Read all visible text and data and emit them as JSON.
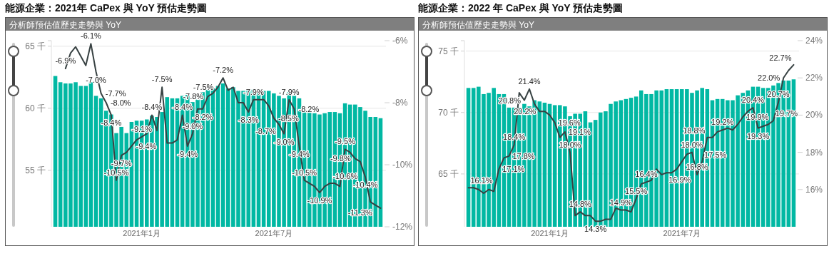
{
  "chart_data": [
    {
      "type": "bar",
      "title": "能源企業：2021年 CaPex 與 YoY 預估走勢圖",
      "subtitle": "分析師預估值歷史走勢與 YoY",
      "grid": "y",
      "categories": [
        null,
        null,
        null,
        null,
        null,
        null,
        null,
        null,
        null,
        null,
        null,
        null,
        null,
        null,
        null,
        null,
        null,
        "2021年1月",
        null,
        null,
        null,
        null,
        null,
        null,
        null,
        null,
        null,
        null,
        null,
        null,
        null,
        null,
        null,
        null,
        null,
        null,
        null,
        null,
        null,
        null,
        null,
        null,
        null,
        "2021年7月",
        null,
        null,
        null,
        null,
        null,
        null,
        null,
        null,
        null,
        null,
        null,
        null,
        null,
        null,
        null,
        null,
        null,
        null,
        null,
        null,
        null
      ],
      "ylim": [
        50.45,
        65.45
      ],
      "yticks": [
        {
          "value": 55,
          "label": "55 千"
        },
        {
          "value": 60,
          "label": "60 千"
        },
        {
          "value": 65,
          "label": "65 千"
        }
      ],
      "y2lim": [
        -12,
        -6
      ],
      "y2ticks": [
        {
          "value": -12,
          "label": "-12%"
        },
        {
          "value": -10,
          "label": "-10%"
        },
        {
          "value": -8,
          "label": "-8%"
        },
        {
          "value": -6,
          "label": "-6%"
        }
      ],
      "series": [
        {
          "type": "bar",
          "color": "#01b8a3",
          "values": [
            62.6,
            62.1,
            62.0,
            62.0,
            62.1,
            61.8,
            61.8,
            62.1,
            61.0,
            60.8,
            59.8,
            59.5,
            58.0,
            58.5,
            58.0,
            58.9,
            59.0,
            59.0,
            59.1,
            59.4,
            59.3,
            59.7,
            60.9,
            60.8,
            60.8,
            61.0,
            61.2,
            60.5,
            60.7,
            61.3,
            61.5,
            61.6,
            61.8,
            62.0,
            61.6,
            61.7,
            61.4,
            61.4,
            61.5,
            61.5,
            61.5,
            61.4,
            61.4,
            61.2,
            61.0,
            60.8,
            61.3,
            61.0,
            60.8,
            59.8,
            59.7,
            59.6,
            59.5,
            59.6,
            59.7,
            59.7,
            59.6,
            60.4,
            60.3,
            60.3,
            60.1,
            59.8,
            59.3,
            59.3,
            59.2
          ]
        },
        {
          "type": "line",
          "axis": "y2",
          "color": "#374142",
          "line_style": "solid",
          "values": [
            null,
            null,
            -6.9,
            -6.4,
            -6.2,
            -6.5,
            -6.8,
            -6.1,
            -7.0,
            -7.7,
            -8.0,
            -8.4,
            -10.5,
            -9.7,
            -9.6,
            -9.4,
            -9.2,
            -9.1,
            -9.0,
            -8.4,
            -8.9,
            -7.5,
            -9.3,
            -9.3,
            -9.2,
            -8.4,
            -9.4,
            -9.0,
            -8.2,
            -8.2,
            -7.8,
            -7.7,
            -7.5,
            -7.2,
            -7.6,
            -7.5,
            -8.0,
            -8.0,
            -8.3,
            -7.9,
            -7.9,
            -7.9,
            -8.1,
            -8.5,
            -8.7,
            -9.0,
            -7.9,
            -8.2,
            -9.4,
            -10.5,
            -10.6,
            -10.7,
            -10.9,
            -10.7,
            -10.6,
            -10.6,
            -10.7,
            -9.5,
            -9.6,
            -9.8,
            -9.9,
            -10.4,
            -11.2,
            -11.3,
            -11.4
          ],
          "value_labels": [
            null,
            null,
            "-6.9%",
            null,
            null,
            null,
            null,
            "-6.1%",
            "-7.0%",
            "-7.7%",
            "-8.0%",
            "-8.4%",
            "-10.5%",
            "-9.7%",
            null,
            "-9.4%",
            null,
            "-9.1%",
            null,
            "-8.4%",
            null,
            "-7.5%",
            null,
            null,
            null,
            "-8.4%",
            "-9.4%",
            "-9.0%",
            null,
            "-8.2%",
            "-7.8%",
            null,
            "-7.5%",
            "-7.2%",
            null,
            null,
            null,
            null,
            "-8.3%",
            "-7.9%",
            null,
            null,
            null,
            "-8.5%",
            "-8.7%",
            "-9.0%",
            "-7.9%",
            "-8.2%",
            "-9.4%",
            "-10.5%",
            null,
            null,
            "-10.9%",
            null,
            "-10.6%",
            null,
            null,
            "-9.5%",
            null,
            "-9.8%",
            null,
            "-10.4%",
            null,
            "-11.3%",
            null
          ]
        }
      ]
    },
    {
      "type": "bar",
      "title": "能源企業：2022 年 CaPex 與 YoY 預估走勢圖",
      "subtitle": "分析師預估值歷史走勢與 YoY",
      "grid": "y",
      "categories": [
        null,
        null,
        null,
        null,
        null,
        null,
        null,
        null,
        null,
        null,
        null,
        null,
        null,
        null,
        null,
        null,
        "2021年1月",
        null,
        null,
        null,
        null,
        null,
        null,
        null,
        null,
        null,
        null,
        null,
        null,
        null,
        null,
        null,
        null,
        null,
        null,
        null,
        null,
        null,
        null,
        null,
        null,
        null,
        "2021年7月",
        null,
        null,
        null,
        null,
        null,
        null,
        null,
        null,
        null,
        null,
        null,
        null,
        null,
        null,
        null,
        null,
        null,
        null,
        null,
        null,
        null,
        null
      ],
      "ylim": [
        60.7,
        75.85
      ],
      "yticks": [
        {
          "value": 65,
          "label": "65 千"
        },
        {
          "value": 70,
          "label": "70 千"
        },
        {
          "value": 75,
          "label": "75 千"
        }
      ],
      "y2lim": [
        14,
        24
      ],
      "y2ticks": [
        {
          "value": 16,
          "label": "16%"
        },
        {
          "value": 18,
          "label": "18%"
        },
        {
          "value": 20,
          "label": "20%"
        },
        {
          "value": 22,
          "label": "22%"
        },
        {
          "value": 24,
          "label": "24%"
        }
      ],
      "series": [
        {
          "type": "bar",
          "color": "#01b8a3",
          "values": [
            72.0,
            72.0,
            72.1,
            71.5,
            71.6,
            72.0,
            71.5,
            71.5,
            70.4,
            70.4,
            70.4,
            70.7,
            70.5,
            71.0,
            70.9,
            70.8,
            70.7,
            70.6,
            70.6,
            70.5,
            69.7,
            69.9,
            69.9,
            70.1,
            69.2,
            69.4,
            70.0,
            70.1,
            70.7,
            70.9,
            71.0,
            71.1,
            71.2,
            71.3,
            71.8,
            71.5,
            71.5,
            71.8,
            71.8,
            71.9,
            71.9,
            71.9,
            71.9,
            71.9,
            71.6,
            71.8,
            72.0,
            71.9,
            71.0,
            71.1,
            71.1,
            71.0,
            71.0,
            71.4,
            71.6,
            71.8,
            72.1,
            72.1,
            72.0,
            72.0,
            72.2,
            72.4,
            72.6,
            72.6,
            72.7
          ]
        },
        {
          "type": "line",
          "axis": "y2",
          "color": "#374142",
          "line_style": "solid",
          "values": [
            16.1,
            16.1,
            16.0,
            15.8,
            16.0,
            15.9,
            17.1,
            17.7,
            17.8,
            18.4,
            21.2,
            20.8,
            21.4,
            20.6,
            20.2,
            20.2,
            20.0,
            19.6,
            18.8,
            19.1,
            18.0,
            14.6,
            14.8,
            14.6,
            14.6,
            14.3,
            14.3,
            14.4,
            14.4,
            15.0,
            14.9,
            14.9,
            14.8,
            15.5,
            16.3,
            16.4,
            16.5,
            17.1,
            16.8,
            16.9,
            16.9,
            17.1,
            17.5,
            17.9,
            18.0,
            16.8,
            17.5,
            18.8,
            18.8,
            19.1,
            19.2,
            19.3,
            19.2,
            19.5,
            19.9,
            20.2,
            20.4,
            19.3,
            19.4,
            19.5,
            19.7,
            20.7,
            22.0,
            22.4,
            22.7
          ],
          "value_labels": [
            "16.1%",
            null,
            null,
            null,
            null,
            null,
            "17.1%",
            null,
            "17.8%",
            "18.4%",
            null,
            "20.8%",
            "21.4%",
            null,
            "20.2%",
            null,
            null,
            "19.6%",
            null,
            "19.1%",
            "18.0%",
            null,
            "14.8%",
            null,
            null,
            "14.3%",
            null,
            null,
            null,
            null,
            "14.9%",
            null,
            null,
            "15.5%",
            null,
            "16.4%",
            null,
            null,
            null,
            "16.9%",
            null,
            null,
            null,
            null,
            "18.0%",
            "16.8%",
            "17.5%",
            "18.8%",
            null,
            null,
            "19.2%",
            null,
            null,
            null,
            "19.9%",
            null,
            "20.4%",
            "19.3%",
            null,
            null,
            "19.7%",
            "20.7%",
            "22.0%",
            null,
            "22.7%"
          ]
        }
      ]
    }
  ]
}
